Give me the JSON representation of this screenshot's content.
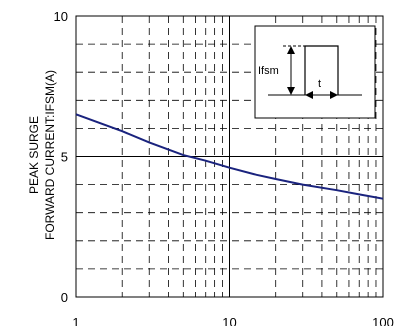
{
  "chart_data": {
    "type": "line",
    "xscale": "log",
    "xlim": [
      1,
      100
    ],
    "ylim": [
      0,
      10
    ],
    "xticks": [
      1,
      10,
      100
    ],
    "yticks": [
      0,
      5,
      10
    ],
    "xtick_labels": [
      "1",
      "10",
      "100"
    ],
    "ytick_labels": [
      "0",
      "5",
      "10"
    ],
    "ylabel_line1": "PEAK SURGE",
    "ylabel_line2": "FORWARD CURRENT:IFSM(A)",
    "grid": true,
    "line_color": "#1a237e",
    "series": [
      {
        "x": [
          1,
          2,
          3,
          5,
          7,
          10,
          15,
          20,
          30,
          50,
          70,
          100
        ],
        "y": [
          6.5,
          5.9,
          5.5,
          5.05,
          4.85,
          4.6,
          4.35,
          4.2,
          4.0,
          3.8,
          3.65,
          3.5
        ]
      }
    ],
    "inset": {
      "label_current": "Ifsm",
      "label_time": "t"
    }
  }
}
